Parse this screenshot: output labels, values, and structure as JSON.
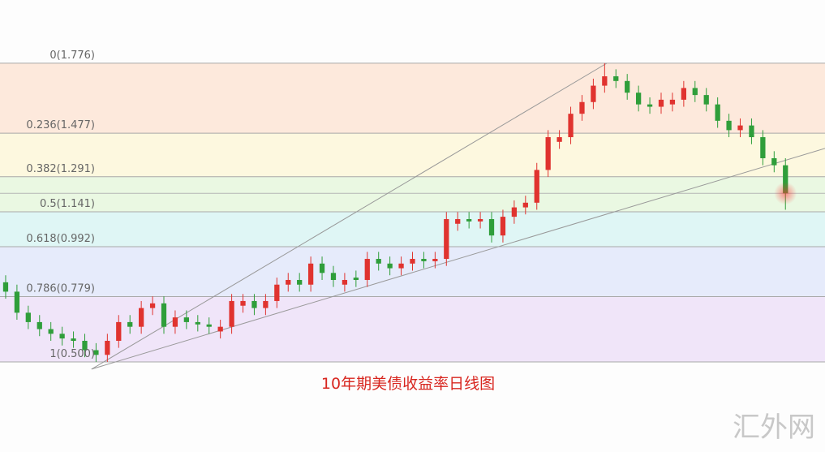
{
  "chart_data": {
    "type": "candlestick",
    "title": "10年期美债收益率日线图",
    "watermark": "汇外网",
    "xlim": [
      -0.5,
      72.5
    ],
    "ylim": [
      0.115,
      2.046
    ],
    "yticks": [
      {
        "value": 1.776,
        "label": "0(1.776)"
      },
      {
        "value": 1.477,
        "label": "0.236(1.477)"
      },
      {
        "value": 1.291,
        "label": "0.382(1.291)"
      },
      {
        "value": 1.141,
        "label": "0.5(1.141)"
      },
      {
        "value": 0.992,
        "label": "0.618(0.992)"
      },
      {
        "value": 0.779,
        "label": "0.786(0.779)"
      },
      {
        "value": 0.5,
        "label": "1(0.500)"
      }
    ],
    "band_colors": [
      "#fde9dc",
      "#fdf8df",
      "#eaf8e2",
      "#dff6f5",
      "#e6ebfb",
      "#f0e5f9"
    ],
    "reference_line": 1.22,
    "up_color": "#e0332f",
    "down_color": "#2f9e3a",
    "series": [
      {
        "open": [
          0.84,
          0.8,
          0.71,
          0.67,
          0.64,
          0.62,
          0.6,
          0.59,
          0.55,
          0.53,
          0.59,
          0.67,
          0.65,
          0.73,
          0.75,
          0.65,
          0.69,
          0.67,
          0.66,
          0.63,
          0.65,
          0.74,
          0.76,
          0.73,
          0.76,
          0.83,
          0.85,
          0.83,
          0.92,
          0.88,
          0.83,
          0.86,
          0.85,
          0.94,
          0.92,
          0.9,
          0.92,
          0.94,
          0.93,
          0.94,
          1.09,
          1.11,
          1.1,
          1.11,
          1.04,
          1.12,
          1.16,
          1.18,
          1.32,
          1.44,
          1.46,
          1.56,
          1.61,
          1.68,
          1.72,
          1.7,
          1.65,
          1.6,
          1.59,
          1.6,
          1.62,
          1.67,
          1.64,
          1.6,
          1.53,
          1.49,
          1.51,
          1.46,
          1.37,
          1.34
        ],
        "high": [
          0.87,
          0.83,
          0.74,
          0.7,
          0.67,
          0.65,
          0.63,
          0.62,
          0.58,
          0.62,
          0.7,
          0.7,
          0.76,
          0.78,
          0.78,
          0.72,
          0.72,
          0.7,
          0.69,
          0.68,
          0.79,
          0.79,
          0.79,
          0.79,
          0.86,
          0.88,
          0.88,
          0.95,
          0.95,
          0.91,
          0.88,
          0.89,
          0.97,
          0.97,
          0.95,
          0.95,
          0.97,
          0.97,
          0.97,
          1.14,
          1.14,
          1.14,
          1.14,
          1.14,
          1.15,
          1.19,
          1.21,
          1.35,
          1.49,
          1.49,
          1.59,
          1.64,
          1.71,
          1.776,
          1.75,
          1.73,
          1.68,
          1.63,
          1.65,
          1.65,
          1.7,
          1.7,
          1.67,
          1.63,
          1.56,
          1.54,
          1.54,
          1.49,
          1.4,
          1.37
        ],
        "low": [
          0.77,
          0.68,
          0.64,
          0.61,
          0.59,
          0.57,
          0.56,
          0.52,
          0.5,
          0.5,
          0.56,
          0.62,
          0.62,
          0.7,
          0.62,
          0.62,
          0.64,
          0.63,
          0.62,
          0.6,
          0.62,
          0.71,
          0.7,
          0.7,
          0.73,
          0.8,
          0.8,
          0.8,
          0.85,
          0.82,
          0.8,
          0.82,
          0.82,
          0.89,
          0.87,
          0.87,
          0.89,
          0.9,
          0.9,
          0.91,
          1.06,
          1.07,
          1.07,
          1.01,
          1.01,
          1.09,
          1.13,
          1.15,
          1.29,
          1.41,
          1.43,
          1.53,
          1.58,
          1.65,
          1.67,
          1.62,
          1.57,
          1.56,
          1.56,
          1.57,
          1.59,
          1.61,
          1.57,
          1.5,
          1.46,
          1.46,
          1.43,
          1.34,
          1.31,
          1.15
        ],
        "close": [
          0.8,
          0.71,
          0.67,
          0.64,
          0.62,
          0.6,
          0.59,
          0.55,
          0.53,
          0.59,
          0.67,
          0.65,
          0.73,
          0.75,
          0.65,
          0.69,
          0.67,
          0.66,
          0.65,
          0.65,
          0.76,
          0.76,
          0.73,
          0.76,
          0.83,
          0.85,
          0.83,
          0.92,
          0.88,
          0.85,
          0.85,
          0.85,
          0.94,
          0.92,
          0.9,
          0.92,
          0.94,
          0.93,
          0.94,
          1.11,
          1.11,
          1.1,
          1.11,
          1.04,
          1.12,
          1.16,
          1.18,
          1.32,
          1.46,
          1.46,
          1.56,
          1.61,
          1.68,
          1.72,
          1.7,
          1.65,
          1.6,
          1.59,
          1.62,
          1.62,
          1.67,
          1.64,
          1.6,
          1.53,
          1.49,
          1.51,
          1.46,
          1.37,
          1.34,
          1.22
        ]
      }
    ],
    "trendlines": [
      {
        "x": [
          7.6,
          53.2
        ],
        "y": [
          0.469,
          1.776
        ]
      },
      {
        "x": [
          7.6,
          72.5
        ],
        "y": [
          0.469,
          1.412
        ]
      }
    ]
  }
}
